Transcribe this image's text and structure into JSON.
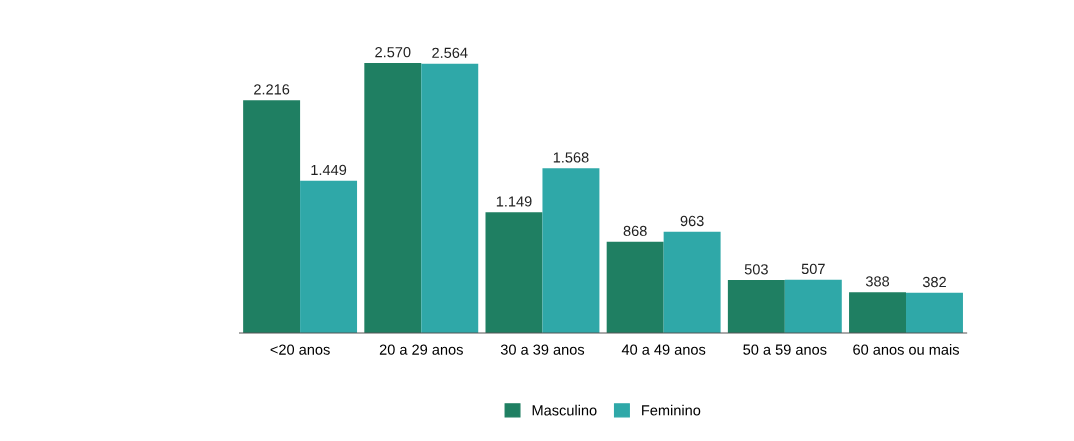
{
  "chart_data": {
    "type": "bar",
    "categories": [
      "<20 anos",
      "20 a 29 anos",
      "30 a 39 anos",
      "40 a 49 anos",
      "50 a 59 anos",
      "60 anos ou mais"
    ],
    "series": [
      {
        "name": "Masculino",
        "color": "#1f7f62",
        "values": [
          2216,
          2570,
          1149,
          868,
          503,
          388
        ],
        "value_labels": [
          "2.216",
          "2.570",
          "1.149",
          "868",
          "503",
          "388"
        ]
      },
      {
        "name": "Feminino",
        "color": "#2fa8a8",
        "values": [
          1449,
          2564,
          1568,
          963,
          507,
          382
        ],
        "value_labels": [
          "1.449",
          "2.564",
          "1.568",
          "963",
          "507",
          "382"
        ]
      }
    ],
    "legend": "bottom",
    "grid": false
  }
}
